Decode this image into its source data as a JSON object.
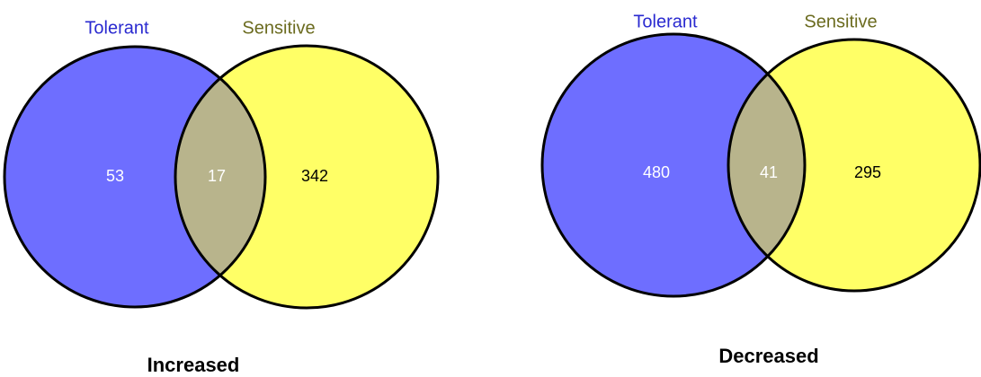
{
  "chart_data": [
    {
      "type": "venn",
      "title": "Increased",
      "sets": [
        {
          "name": "Tolerant",
          "color": "#6e6eff",
          "label_color": "#2a2ad0"
        },
        {
          "name": "Sensitive",
          "color": "#ffff66",
          "label_color": "#6b6b1f"
        }
      ],
      "overlap_color": "#b8b48c",
      "categories": [
        "Tolerant",
        "Tolerant and Sensitive",
        "Sensitive"
      ],
      "values": [
        53,
        17,
        342
      ]
    },
    {
      "type": "venn",
      "title": "Decreased",
      "sets": [
        {
          "name": "Tolerant",
          "color": "#6e6eff",
          "label_color": "#2a2ad0"
        },
        {
          "name": "Sensitive",
          "color": "#ffff66",
          "label_color": "#6b6b1f"
        }
      ],
      "overlap_color": "#b8b48c",
      "categories": [
        "Tolerant",
        "Tolerant and Sensitive",
        "Sensitive"
      ],
      "values": [
        480,
        41,
        295
      ]
    }
  ]
}
